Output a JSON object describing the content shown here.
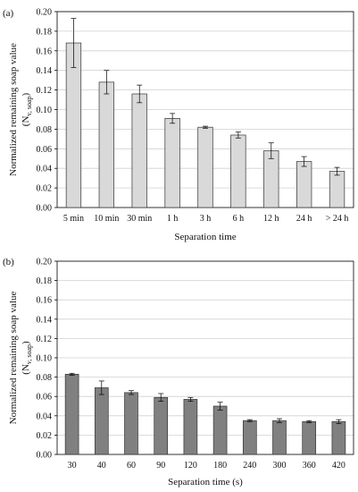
{
  "chart_data": [
    {
      "panel_label": "(a)",
      "type": "bar",
      "categories": [
        "5 min",
        "10 min",
        "30 min",
        "1 h",
        "3 h",
        "6 h",
        "12 h",
        "24 h",
        "> 24 h"
      ],
      "values": [
        0.168,
        0.128,
        0.116,
        0.091,
        0.082,
        0.074,
        0.058,
        0.047,
        0.037
      ],
      "errors": [
        0.025,
        0.012,
        0.009,
        0.005,
        0.001,
        0.003,
        0.008,
        0.005,
        0.004
      ],
      "bar_color": "#d9d9d9",
      "xlabel": "Separation time",
      "ylabel": "Normalized remaining soap value",
      "ylabel_sub_base": "(N",
      "ylabel_sub_subscript": "v, soap",
      "ylabel_sub_close": ")",
      "ylim": [
        0,
        0.2
      ],
      "yticks": [
        "0.00",
        "0.02",
        "0.04",
        "0.06",
        "0.08",
        "0.10",
        "0.12",
        "0.14",
        "0.16",
        "0.18",
        "0.20"
      ],
      "grid": true
    },
    {
      "panel_label": "(b)",
      "type": "bar",
      "categories": [
        "30",
        "40",
        "60",
        "90",
        "120",
        "180",
        "240",
        "300",
        "360",
        "420"
      ],
      "values": [
        0.083,
        0.069,
        0.064,
        0.059,
        0.057,
        0.05,
        0.035,
        0.035,
        0.034,
        0.034
      ],
      "errors": [
        0.001,
        0.007,
        0.002,
        0.004,
        0.002,
        0.004,
        0.001,
        0.002,
        0.001,
        0.002
      ],
      "bar_color": "#808080",
      "xlabel": "Separation time (s)",
      "ylabel": "Normalized remaining soap value",
      "ylabel_sub_base": "(N",
      "ylabel_sub_subscript": "v, soap",
      "ylabel_sub_close": ")",
      "ylim": [
        0,
        0.2
      ],
      "yticks": [
        "0.00",
        "0.02",
        "0.04",
        "0.06",
        "0.08",
        "0.10",
        "0.12",
        "0.14",
        "0.16",
        "0.18",
        "0.20"
      ],
      "grid": true
    }
  ]
}
